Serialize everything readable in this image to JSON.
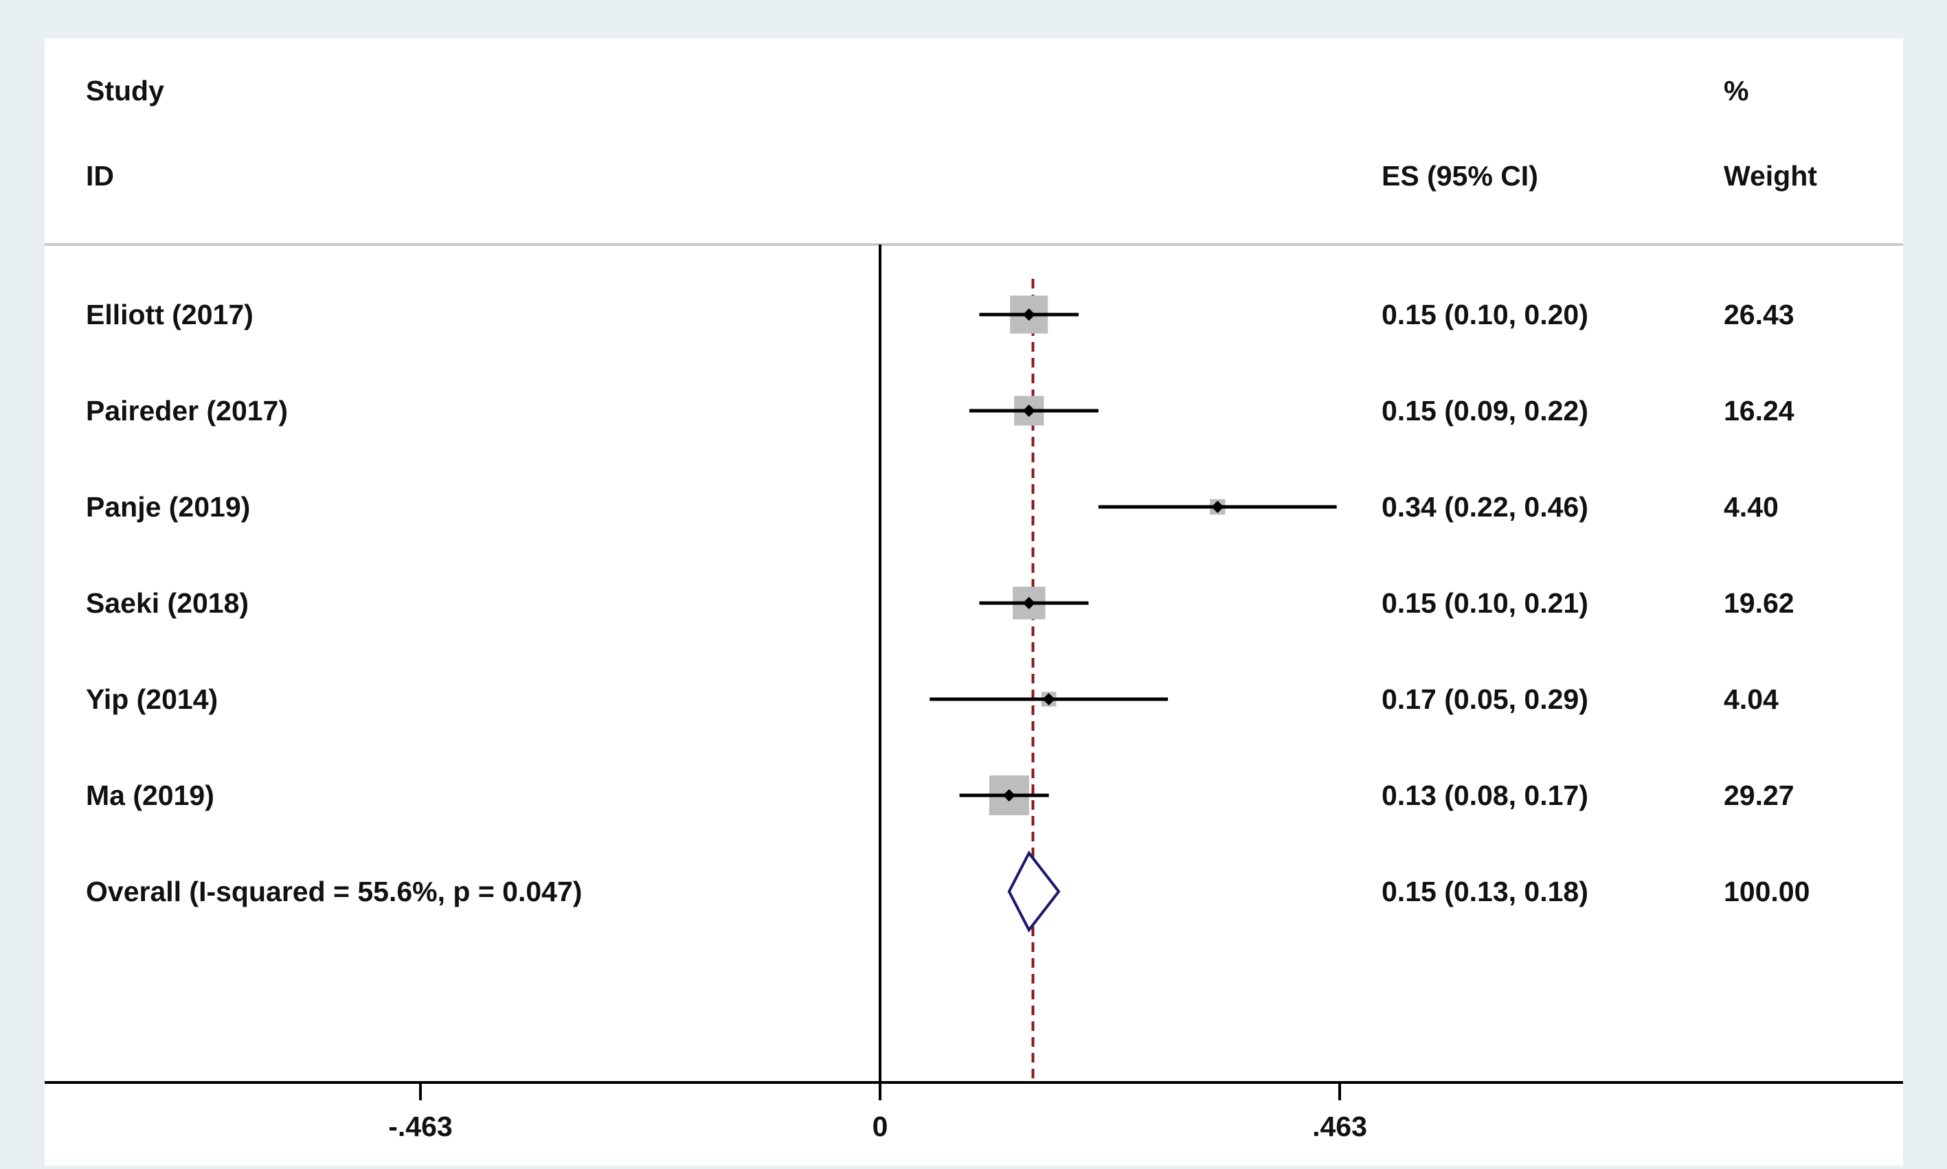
{
  "header": {
    "study_label": "Study",
    "id_label": "ID",
    "es_label": "ES (95% CI)",
    "percent_label": "%",
    "weight_label": "Weight"
  },
  "chart_data": {
    "type": "forest",
    "studies": [
      {
        "id": "Elliott (2017)",
        "es": 0.15,
        "lo": 0.1,
        "hi": 0.2,
        "es_text": "0.15 (0.10, 0.20)",
        "weight": "26.43"
      },
      {
        "id": "Paireder  (2017)",
        "es": 0.15,
        "lo": 0.09,
        "hi": 0.22,
        "es_text": "0.15 (0.09, 0.22)",
        "weight": "16.24"
      },
      {
        "id": "Panje  (2019)",
        "es": 0.34,
        "lo": 0.22,
        "hi": 0.46,
        "es_text": "0.34 (0.22, 0.46)",
        "weight": "4.40"
      },
      {
        "id": "Saeki  (2018)",
        "es": 0.15,
        "lo": 0.1,
        "hi": 0.21,
        "es_text": "0.15 (0.10, 0.21)",
        "weight": "19.62"
      },
      {
        "id": "Yip (2014)",
        "es": 0.17,
        "lo": 0.05,
        "hi": 0.29,
        "es_text": "0.17 (0.05, 0.29)",
        "weight": "4.04"
      },
      {
        "id": "Ma (2019)",
        "es": 0.13,
        "lo": 0.08,
        "hi": 0.17,
        "es_text": "0.13 (0.08, 0.17)",
        "weight": "29.27"
      }
    ],
    "overall": {
      "label": "Overall  (I-squared = 55.6%, p = 0.047)",
      "es": 0.15,
      "lo": 0.13,
      "hi": 0.18,
      "es_text": "0.15 (0.13, 0.18)",
      "weight": "100.00"
    },
    "axis": {
      "ticks": [
        -0.463,
        0,
        0.463
      ],
      "tick_labels": [
        "-.463",
        "0",
        ".463"
      ],
      "range": [
        -0.463,
        0.463
      ],
      "null_line": 0,
      "reference_line": 0.154
    },
    "colors": {
      "ci_line": "#000000",
      "weight_box": "#bdbdbd",
      "reference_line": "#8b1a1a",
      "overall_diamond": "#1a1a6e",
      "header_rule": "#c8c8c8",
      "background": "#e8f0f2"
    }
  }
}
